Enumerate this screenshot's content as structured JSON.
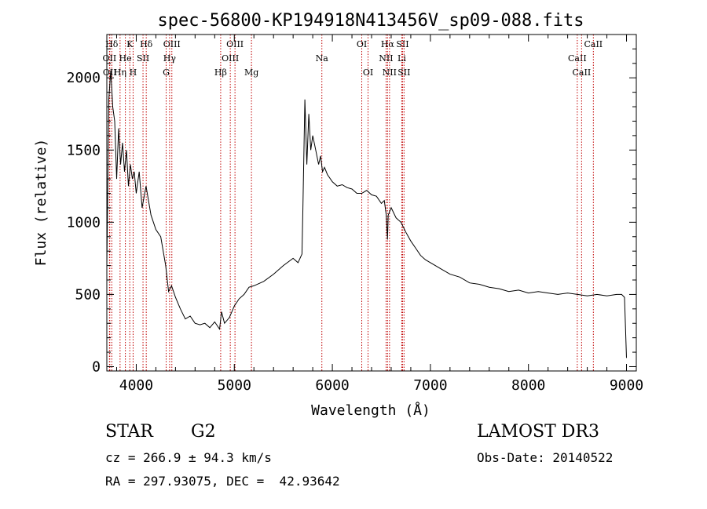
{
  "chart_data": {
    "type": "line",
    "title": "spec-56800-KP194918N413456V_sp09-088.fits",
    "xlabel": "Wavelength (Å)",
    "ylabel": "Flux (relative)",
    "xlim": [
      3700,
      9100
    ],
    "ylim": [
      -30,
      2300
    ],
    "xticks": [
      4000,
      5000,
      6000,
      7000,
      8000,
      9000
    ],
    "yticks": [
      0,
      500,
      1000,
      1500,
      2000
    ],
    "grid": false,
    "series": [
      {
        "x": [
          3700,
          3720,
          3740,
          3760,
          3780,
          3800,
          3820,
          3840,
          3860,
          3880,
          3900,
          3920,
          3940,
          3960,
          3980,
          4000,
          4030,
          4060,
          4100,
          4150,
          4200,
          4250,
          4300,
          4330,
          4360,
          4400,
          4450,
          4500,
          4550,
          4600,
          4650,
          4700,
          4750,
          4800,
          4850,
          4870,
          4900,
          4950,
          5000,
          5050,
          5100,
          5150,
          5200,
          5300,
          5400,
          5500,
          5600,
          5650,
          5690,
          5700,
          5720,
          5740,
          5760,
          5780,
          5800,
          5830,
          5860,
          5880,
          5900,
          5920,
          5950,
          6000,
          6050,
          6100,
          6150,
          6200,
          6250,
          6300,
          6350,
          6400,
          6450,
          6500,
          6530,
          6550,
          6563,
          6570,
          6600,
          6650,
          6700,
          6750,
          6800,
          6850,
          6900,
          6950,
          7000,
          7050,
          7100,
          7200,
          7300,
          7400,
          7500,
          7600,
          7700,
          7800,
          7900,
          8000,
          8100,
          8200,
          8300,
          8400,
          8500,
          8600,
          8700,
          8800,
          8900,
          8950,
          8980,
          9000
        ],
        "y": [
          700,
          1850,
          2050,
          1800,
          1700,
          1300,
          1650,
          1400,
          1550,
          1350,
          1500,
          1250,
          1400,
          1300,
          1350,
          1200,
          1350,
          1100,
          1250,
          1050,
          950,
          900,
          700,
          520,
          560,
          480,
          400,
          330,
          350,
          300,
          290,
          300,
          270,
          310,
          260,
          380,
          300,
          340,
          420,
          470,
          500,
          550,
          560,
          590,
          640,
          700,
          750,
          720,
          780,
          1100,
          1850,
          1400,
          1750,
          1500,
          1600,
          1500,
          1400,
          1460,
          1350,
          1380,
          1330,
          1280,
          1250,
          1260,
          1240,
          1230,
          1200,
          1200,
          1220,
          1190,
          1180,
          1130,
          1150,
          1050,
          880,
          1050,
          1100,
          1030,
          1000,
          930,
          870,
          820,
          770,
          740,
          720,
          700,
          680,
          640,
          620,
          580,
          570,
          550,
          540,
          520,
          530,
          510,
          520,
          510,
          500,
          510,
          500,
          490,
          500,
          490,
          500,
          500,
          480,
          60
        ]
      }
    ],
    "line_markers": [
      {
        "label": "Hδ",
        "x": 3750,
        "row": 1
      },
      {
        "label": "OII",
        "x": 3727,
        "row": 2
      },
      {
        "label": "OII",
        "x": 3730,
        "row": 3
      },
      {
        "label": "K",
        "x": 3934,
        "row": 1
      },
      {
        "label": "He",
        "x": 3889,
        "row": 2
      },
      {
        "label": "Hη",
        "x": 3835,
        "row": 3
      },
      {
        "label": "Hδ",
        "x": 4102,
        "row": 1
      },
      {
        "label": "SII",
        "x": 4069,
        "row": 2
      },
      {
        "label": "H",
        "x": 3968,
        "row": 3
      },
      {
        "label": "OIII",
        "x": 4363,
        "row": 1
      },
      {
        "label": "Hγ",
        "x": 4340,
        "row": 2
      },
      {
        "label": "G",
        "x": 4305,
        "row": 3
      },
      {
        "label": "OIII",
        "x": 5007,
        "row": 1
      },
      {
        "label": "OIII",
        "x": 4959,
        "row": 2
      },
      {
        "label": "Hβ",
        "x": 4861,
        "row": 3
      },
      {
        "label": "Mg",
        "x": 5175,
        "row": 3
      },
      {
        "label": "Na",
        "x": 5893,
        "row": 2
      },
      {
        "label": "OI",
        "x": 6300,
        "row": 1
      },
      {
        "label": "OI",
        "x": 6364,
        "row": 3
      },
      {
        "label": "Hα",
        "x": 6563,
        "row": 1
      },
      {
        "label": "SII",
        "x": 6716,
        "row": 1
      },
      {
        "label": "NII",
        "x": 6548,
        "row": 2
      },
      {
        "label": "Li",
        "x": 6708,
        "row": 2
      },
      {
        "label": "NII",
        "x": 6583,
        "row": 3
      },
      {
        "label": "SII",
        "x": 6731,
        "row": 3
      },
      {
        "label": "CaII",
        "x": 8662,
        "row": 1
      },
      {
        "label": "CaII",
        "x": 8498,
        "row": 2
      },
      {
        "label": "CaII",
        "x": 8542,
        "row": 3
      }
    ]
  },
  "info": {
    "class": "STAR",
    "subclass": "G2",
    "survey": "LAMOST DR3",
    "cz": "cz = 266.9 ± 94.3 km/s",
    "obsdate": "Obs-Date: 20140522",
    "radec": "RA = 297.93075, DEC =  42.93642"
  }
}
